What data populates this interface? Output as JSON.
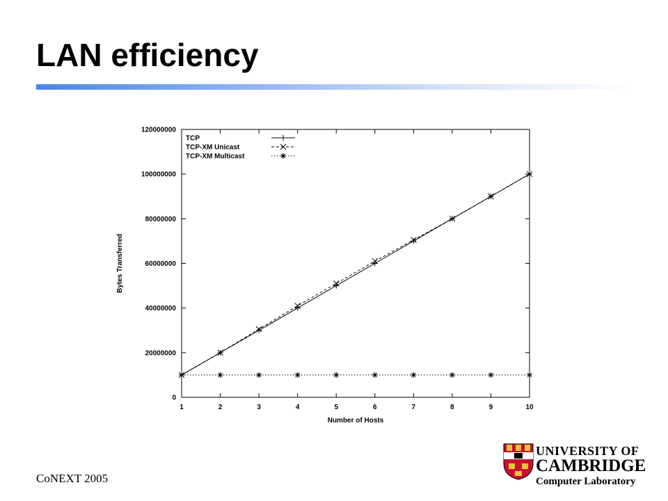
{
  "slide": {
    "title": "LAN efficiency",
    "footer": "CoNEXT 2005",
    "accent_color": "#4f86e6"
  },
  "logo": {
    "line1": "UNIVERSITY OF",
    "line2": "CAMBRIDGE",
    "line3": "Computer Laboratory",
    "crest_color": "#c8102e",
    "icon": "university-crest-icon"
  },
  "chart_data": {
    "type": "line",
    "xlabel": "Number of Hosts",
    "ylabel": "Bytes Transferred",
    "xlim": [
      1,
      10
    ],
    "ylim": [
      0,
      120000000
    ],
    "x": [
      1,
      2,
      3,
      4,
      5,
      6,
      7,
      8,
      9,
      10
    ],
    "xticks": [
      "1",
      "2",
      "3",
      "4",
      "5",
      "6",
      "7",
      "8",
      "9",
      "10"
    ],
    "yticks": [
      0,
      20000000,
      40000000,
      60000000,
      80000000,
      100000000,
      120000000
    ],
    "ytick_labels": [
      "0",
      "20000000",
      "40000000",
      "60000000",
      "80000000",
      "100000000",
      "120000000"
    ],
    "grid": false,
    "legend_position": "top-left",
    "series": [
      {
        "name": "TCP",
        "marker": "+",
        "dash": "solid",
        "values": [
          10000000,
          20000000,
          30000000,
          40000000,
          50000000,
          60000000,
          70000000,
          80000000,
          90000000,
          100000000
        ]
      },
      {
        "name": "TCP-XM Unicast",
        "marker": "x",
        "dash": "dashed",
        "values": [
          10000000,
          20000000,
          30500000,
          41000000,
          51000000,
          61000000,
          70500000,
          80000000,
          90000000,
          100000000
        ]
      },
      {
        "name": "TCP-XM Multicast",
        "marker": "*",
        "dash": "dotted",
        "values": [
          10000000,
          10000000,
          10000000,
          10000000,
          10000000,
          10000000,
          10000000,
          10000000,
          10000000,
          10000000
        ]
      }
    ]
  }
}
